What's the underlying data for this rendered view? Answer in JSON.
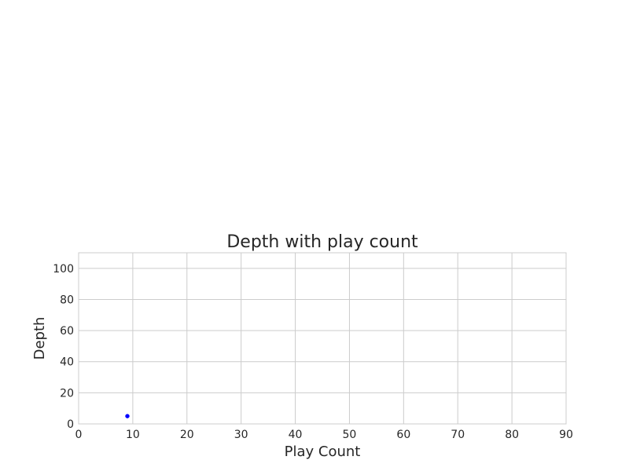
{
  "chart_data": {
    "type": "scatter",
    "title": "Depth with play count",
    "xlabel": "Play Count",
    "ylabel": "Depth",
    "xlim": [
      0,
      90
    ],
    "ylim": [
      0,
      110
    ],
    "xticks": [
      0,
      10,
      20,
      30,
      40,
      50,
      60,
      70,
      80,
      90
    ],
    "yticks": [
      0,
      20,
      40,
      60,
      80,
      100
    ],
    "grid": true,
    "series": [
      {
        "color": "#0000ff",
        "points": [
          {
            "x": 9,
            "y": 5
          }
        ]
      }
    ]
  }
}
